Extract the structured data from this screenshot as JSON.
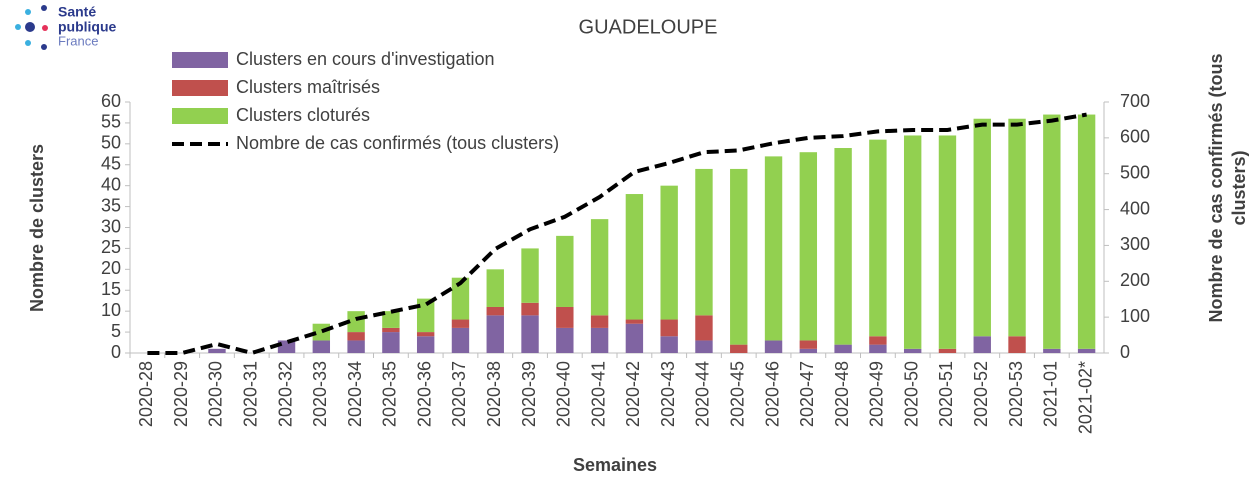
{
  "logo": [
    "Santé",
    "publique",
    "France"
  ],
  "chart_data": {
    "type": "bar",
    "stacked": true,
    "title": "GUADELOUPE",
    "xlabel": "Semaines",
    "ylabel": "Nombre de clusters",
    "y2label": [
      "Nombre de cas confirmés (tous",
      "clusters)"
    ],
    "categories": [
      "2020-28",
      "2020-29",
      "2020-30",
      "2020-31",
      "2020-32",
      "2020-33",
      "2020-34",
      "2020-35",
      "2020-36",
      "2020-37",
      "2020-38",
      "2020-39",
      "2020-40",
      "2020-41",
      "2020-42",
      "2020-43",
      "2020-44",
      "2020-45",
      "2020-46",
      "2020-47",
      "2020-48",
      "2020-49",
      "2020-50",
      "2020-51",
      "2020-52",
      "2020-53",
      "2021-01",
      "2021-02*"
    ],
    "series": [
      {
        "name": "Clusters en cours d'investigation",
        "color": "#8064a2",
        "values": [
          0,
          0,
          1,
          0,
          3,
          3,
          3,
          5,
          4,
          6,
          9,
          9,
          6,
          6,
          7,
          4,
          3,
          0,
          3,
          1,
          2,
          2,
          1,
          0,
          4,
          0,
          1,
          1
        ]
      },
      {
        "name": "Clusters maîtrisés",
        "color": "#c0504d",
        "values": [
          0,
          0,
          0,
          0,
          0,
          0,
          2,
          1,
          1,
          2,
          2,
          3,
          5,
          3,
          1,
          4,
          6,
          2,
          0,
          2,
          0,
          2,
          0,
          1,
          0,
          4,
          0,
          0
        ]
      },
      {
        "name": "Clusters cloturés",
        "color": "#92d050",
        "values": [
          0,
          0,
          0,
          0,
          0,
          4,
          5,
          4,
          8,
          10,
          9,
          13,
          17,
          23,
          30,
          32,
          35,
          42,
          44,
          45,
          47,
          47,
          51,
          51,
          52,
          52,
          56,
          56
        ]
      },
      {
        "name": "Nombre de cas confirmés (tous clusters)",
        "type": "line",
        "axis": "y2",
        "color": "#000000",
        "dashed": true,
        "values": [
          0,
          0,
          25,
          0,
          30,
          60,
          95,
          115,
          135,
          195,
          290,
          345,
          380,
          435,
          505,
          530,
          560,
          565,
          585,
          600,
          605,
          618,
          622,
          622,
          637,
          637,
          648,
          665
        ]
      }
    ],
    "ylim": [
      0,
      60
    ],
    "yticks": [
      0,
      5,
      10,
      15,
      20,
      25,
      30,
      35,
      40,
      45,
      50,
      55,
      60
    ],
    "y2lim": [
      0,
      700
    ],
    "y2ticks": [
      0,
      100,
      200,
      300,
      400,
      500,
      600,
      700
    ],
    "grid": false,
    "legend": "top-left"
  }
}
